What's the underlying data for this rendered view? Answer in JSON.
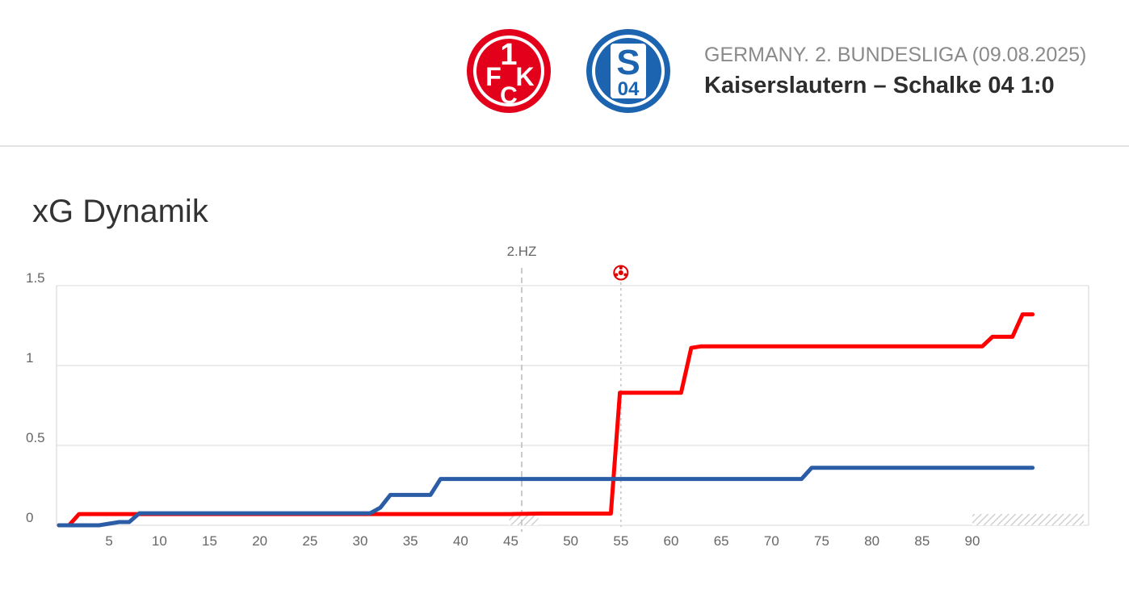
{
  "header": {
    "competition": "GERMANY. 2. BUNDESLIGA (09.08.2025)",
    "match": "Kaiserslautern – Schalke 04 1:0",
    "home_logo": {
      "icon": "fck-logo-icon",
      "color": "#e2001a",
      "lettering": "1FCK"
    },
    "away_logo": {
      "icon": "schalke-logo-icon",
      "color": "#1c64b0",
      "lettering": "S04"
    }
  },
  "section_title": "xG Dynamik",
  "chart_data": {
    "type": "line",
    "title": "xG Dynamik",
    "xlabel": "",
    "ylabel": "",
    "ylim": [
      0,
      1.5
    ],
    "y_ticks": [
      "0",
      "0.5",
      "1",
      "1.5"
    ],
    "x_ticks_first_half": [
      "5",
      "10",
      "15",
      "20",
      "25",
      "30",
      "35",
      "40",
      "45"
    ],
    "x_ticks_second_half": [
      "50",
      "55",
      "60",
      "65",
      "70",
      "75",
      "80",
      "85",
      "90"
    ],
    "halftime_label": "2.HZ",
    "goal_minute": 55,
    "grid": true,
    "series": [
      {
        "color": "#ff0000",
        "x": [
          0,
          1,
          2,
          45,
          47,
          54,
          54.9,
          61,
          62,
          63,
          90,
          91,
          92,
          94,
          95,
          96
        ],
        "y": [
          0,
          0,
          0.07,
          0.07,
          0.073,
          0.073,
          0.83,
          0.83,
          1.11,
          1.12,
          1.12,
          1.12,
          1.18,
          1.18,
          1.32,
          1.32
        ]
      },
      {
        "color": "#2b5ca6",
        "x": [
          0,
          4,
          6,
          7,
          8,
          31,
          32,
          33,
          37,
          38,
          45,
          73,
          74,
          90,
          96
        ],
        "y": [
          0,
          0,
          0.02,
          0.02,
          0.075,
          0.075,
          0.11,
          0.19,
          0.19,
          0.29,
          0.29,
          0.29,
          0.36,
          0.36,
          0.36
        ]
      }
    ]
  }
}
